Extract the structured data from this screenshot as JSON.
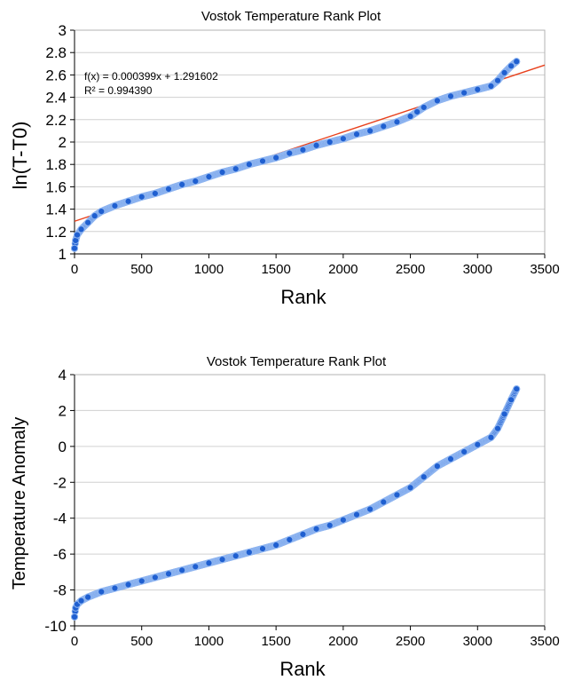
{
  "chart_data": [
    {
      "type": "scatter",
      "title": "Vostok Temperature Rank Plot",
      "xlabel": "Rank",
      "ylabel": "ln(T-T0)",
      "xlim": [
        0,
        3500
      ],
      "ylim": [
        1,
        3
      ],
      "xticks": [
        0,
        500,
        1000,
        1500,
        2000,
        2500,
        3000,
        3500
      ],
      "yticks": [
        1,
        1.2,
        1.4,
        1.6,
        1.8,
        2,
        2.2,
        2.4,
        2.6,
        2.8,
        3
      ],
      "grid": "horizontal",
      "colors": {
        "points": "#1f5fd0",
        "point_highlight": "#8fb5f0",
        "trendline": "#e8401c",
        "grid": "#d0d0d0",
        "axis": "#000000"
      },
      "series": [
        {
          "x": [
            0,
            8,
            20,
            50,
            100,
            150,
            200,
            300,
            400,
            500,
            600,
            700,
            800,
            900,
            1000,
            1100,
            1200,
            1300,
            1400,
            1500,
            1600,
            1700,
            1800,
            1900,
            2000,
            2100,
            2200,
            2300,
            2400,
            2500,
            2550,
            2600,
            2700,
            2800,
            2900,
            3000,
            3100,
            3150,
            3200,
            3250,
            3290
          ],
          "y": [
            1.05,
            1.12,
            1.17,
            1.22,
            1.28,
            1.34,
            1.38,
            1.43,
            1.47,
            1.51,
            1.54,
            1.58,
            1.62,
            1.65,
            1.69,
            1.73,
            1.76,
            1.8,
            1.83,
            1.86,
            1.9,
            1.93,
            1.97,
            2.0,
            2.03,
            2.07,
            2.1,
            2.14,
            2.18,
            2.23,
            2.27,
            2.31,
            2.37,
            2.41,
            2.44,
            2.47,
            2.5,
            2.55,
            2.62,
            2.68,
            2.72
          ]
        }
      ],
      "trendline": {
        "slope": 0.000399,
        "intercept": 1.291602,
        "equation_label": "f(x) = 0.000399x + 1.291602",
        "r2_label": "R² = 0.994390"
      }
    },
    {
      "type": "scatter",
      "title": "Vostok Temperature Rank Plot",
      "xlabel": "Rank",
      "ylabel": "Temperature Anomaly",
      "xlim": [
        0,
        3500
      ],
      "ylim": [
        -10,
        4
      ],
      "xticks": [
        0,
        500,
        1000,
        1500,
        2000,
        2500,
        3000,
        3500
      ],
      "yticks": [
        -10,
        -8,
        -6,
        -4,
        -2,
        0,
        2,
        4
      ],
      "grid": "horizontal",
      "colors": {
        "points": "#1f5fd0",
        "point_highlight": "#8fb5f0",
        "grid": "#d0d0d0",
        "axis": "#000000"
      },
      "series": [
        {
          "x": [
            0,
            8,
            20,
            50,
            100,
            200,
            300,
            400,
            500,
            600,
            700,
            800,
            900,
            1000,
            1100,
            1200,
            1300,
            1400,
            1500,
            1600,
            1700,
            1800,
            1900,
            2000,
            2100,
            2200,
            2300,
            2400,
            2500,
            2600,
            2700,
            2800,
            2900,
            3000,
            3100,
            3150,
            3200,
            3250,
            3290
          ],
          "y": [
            -9.5,
            -9.0,
            -8.8,
            -8.6,
            -8.4,
            -8.1,
            -7.9,
            -7.7,
            -7.5,
            -7.3,
            -7.1,
            -6.9,
            -6.7,
            -6.5,
            -6.3,
            -6.1,
            -5.9,
            -5.7,
            -5.5,
            -5.2,
            -4.9,
            -4.6,
            -4.4,
            -4.1,
            -3.8,
            -3.5,
            -3.1,
            -2.7,
            -2.3,
            -1.7,
            -1.1,
            -0.7,
            -0.3,
            0.1,
            0.5,
            1.0,
            1.8,
            2.6,
            3.2
          ]
        }
      ]
    }
  ]
}
